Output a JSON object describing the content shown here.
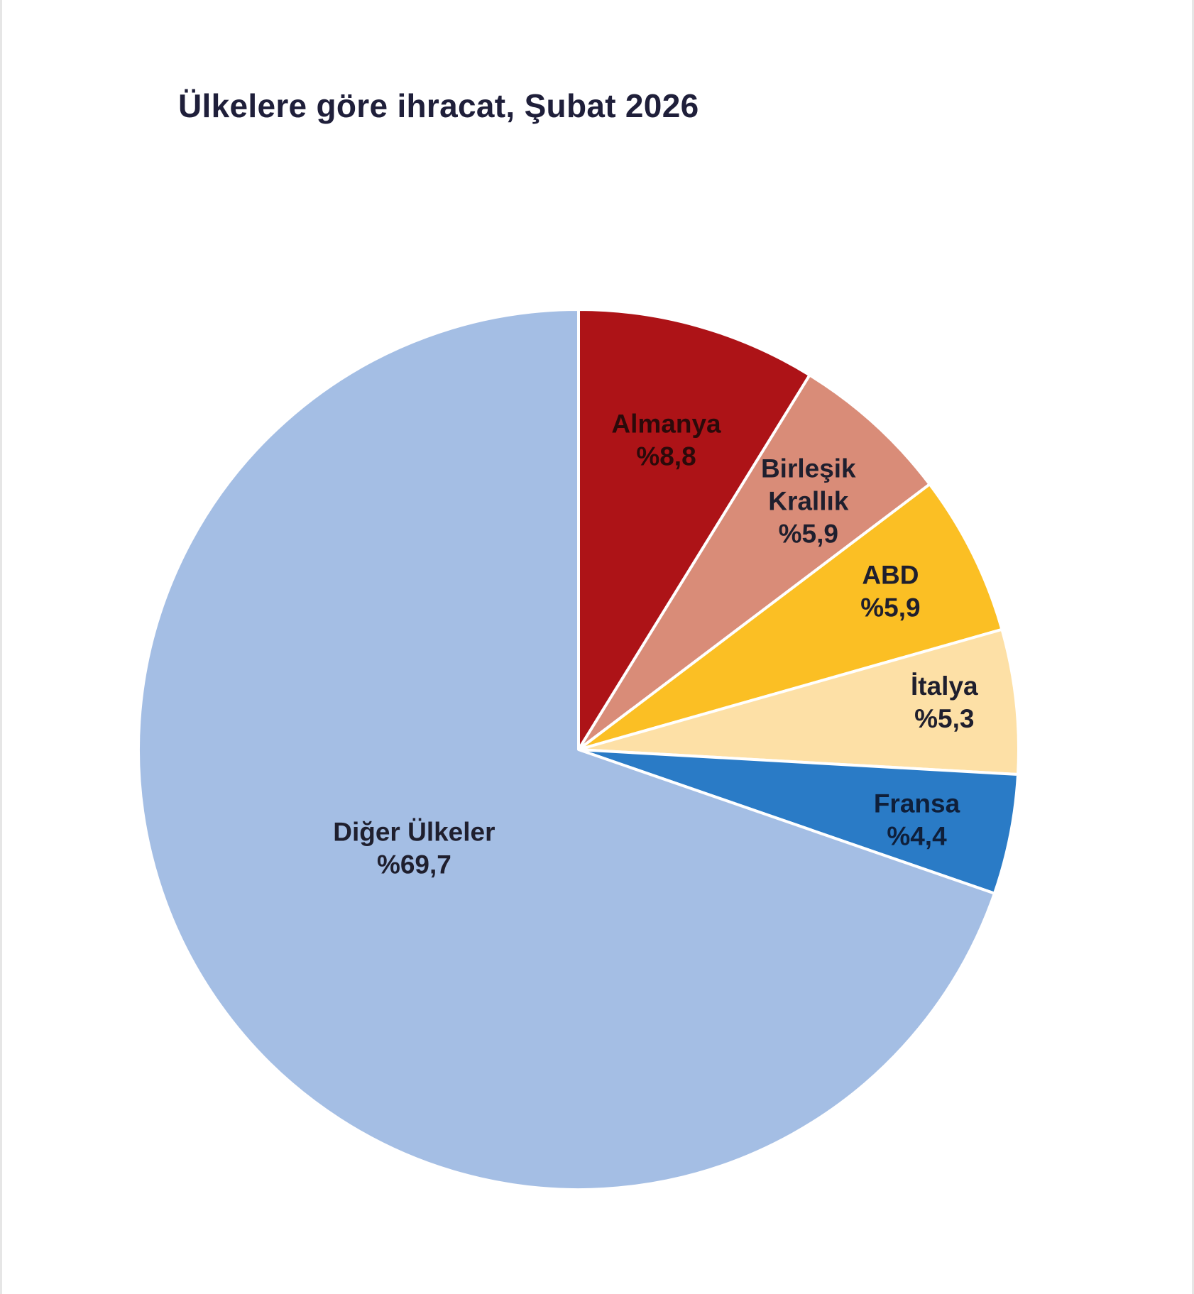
{
  "chart_data": {
    "type": "pie",
    "title": "Ülkelere göre ihracat, Şubat 2026",
    "unit": "%",
    "start_angle_deg": 0,
    "direction": "clockwise",
    "slices": [
      {
        "name": "Almanya",
        "name_lines": [
          "Almanya"
        ],
        "value": 8.8,
        "value_label": "%8,8",
        "color": "#ad1317",
        "label_color": "#2b0a0a"
      },
      {
        "name": "Birleşik Krallık",
        "name_lines": [
          "Birleşik",
          "Krallık"
        ],
        "value": 5.9,
        "value_label": "%5,9",
        "color": "#d98c78",
        "label_color": "#1f1f2e"
      },
      {
        "name": "ABD",
        "name_lines": [
          "ABD"
        ],
        "value": 5.9,
        "value_label": "%5,9",
        "color": "#fbbf24",
        "label_color": "#1f1f2e"
      },
      {
        "name": "İtalya",
        "name_lines": [
          "İtalya"
        ],
        "value": 5.3,
        "value_label": "%5,3",
        "color": "#fde0a6",
        "label_color": "#1f1f2e"
      },
      {
        "name": "Fransa",
        "name_lines": [
          "Fransa"
        ],
        "value": 4.4,
        "value_label": "%4,4",
        "color": "#2a7bc6",
        "label_color": "#0f1f3a"
      },
      {
        "name": "Diğer Ülkeler",
        "name_lines": [
          "Diğer Ülkeler"
        ],
        "value": 69.7,
        "value_label": "%69,7",
        "color": "#a4bee4",
        "label_color": "#1f1f2e"
      }
    ]
  }
}
